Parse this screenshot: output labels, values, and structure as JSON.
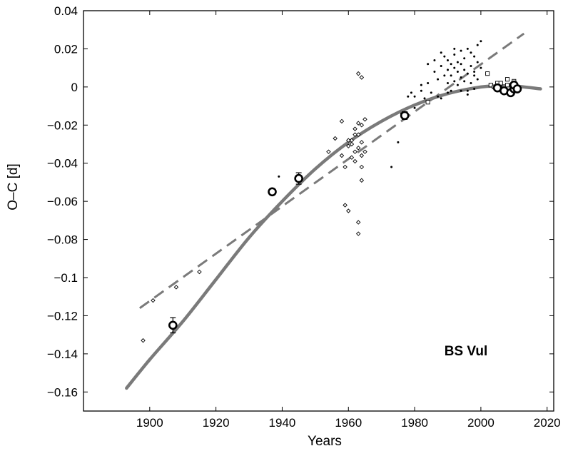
{
  "chart_data": {
    "type": "scatter",
    "title": "",
    "xlabel": "Years",
    "ylabel": "O–C  [d]",
    "annotation": "BS Vul",
    "xlim": [
      1880,
      2022
    ],
    "ylim": [
      -0.17,
      0.04
    ],
    "x_ticks": [
      1900,
      1920,
      1940,
      1960,
      1980,
      2000,
      2020
    ],
    "y_ticks": [
      0.04,
      0.02,
      0,
      -0.02,
      -0.04,
      -0.06,
      -0.08,
      -0.1,
      -0.12,
      -0.14,
      -0.16
    ],
    "x_tick_labels": [
      "1900",
      "1920",
      "1940",
      "1960",
      "1980",
      "2000",
      "2020"
    ],
    "y_tick_labels": [
      "0.04",
      "0.02",
      "0",
      "−0.02",
      "−0.04",
      "−0.06",
      "−0.08",
      "−0.1",
      "−0.12",
      "−0.14",
      "−0.16"
    ],
    "grid": false,
    "colors": {
      "curve": "#7a7a7a",
      "axis": "#000000",
      "points": "#000000"
    },
    "series": [
      {
        "kind": "fit-parabola",
        "x": [
          1893,
          1900,
          1910,
          1920,
          1930,
          1940,
          1950,
          1960,
          1970,
          1980,
          1990,
          2000,
          2005,
          2010,
          2018
        ],
        "y": [
          -0.158,
          -0.143,
          -0.123,
          -0.101,
          -0.079,
          -0.06,
          -0.043,
          -0.029,
          -0.018,
          -0.0095,
          -0.0035,
          0,
          0.0005,
          0.0005,
          -0.001
        ]
      },
      {
        "kind": "fit-linear",
        "x": [
          1897,
          2013
        ],
        "y": [
          -0.116,
          0.028
        ]
      },
      {
        "kind": "diamond",
        "x": [
          1898,
          1901,
          1908,
          1915,
          1937,
          1954,
          1956,
          1958,
          1958,
          1959,
          1960,
          1960,
          1961,
          1961,
          1962,
          1962,
          1962,
          1963,
          1963,
          1963,
          1963,
          1964,
          1964,
          1964,
          1964,
          1965,
          1963,
          1959,
          1960,
          1964,
          1963,
          1964,
          1961,
          1962,
          1965
        ],
        "y": [
          -0.133,
          -0.112,
          -0.105,
          -0.097,
          -0.055,
          -0.034,
          -0.027,
          -0.018,
          -0.036,
          -0.042,
          -0.031,
          -0.065,
          -0.028,
          -0.037,
          -0.022,
          -0.034,
          -0.039,
          -0.019,
          -0.025,
          -0.032,
          0.007,
          -0.02,
          -0.029,
          -0.042,
          -0.049,
          -0.017,
          -0.071,
          -0.062,
          -0.028,
          0.005,
          -0.077,
          -0.036,
          -0.03,
          -0.025,
          -0.034
        ]
      },
      {
        "kind": "dot",
        "x": [
          1939,
          1973,
          1975,
          1978,
          1979,
          1980,
          1982,
          1983,
          1984,
          1985,
          1986,
          1987,
          1987,
          1988,
          1988,
          1989,
          1989,
          1990,
          1990,
          1990,
          1991,
          1991,
          1991,
          1992,
          1992,
          1992,
          1993,
          1993,
          1993,
          1994,
          1994,
          1994,
          1995,
          1995,
          1995,
          1996,
          1996,
          1996,
          1997,
          1997,
          1997,
          1998,
          1998,
          1998,
          1999,
          1999,
          1999,
          2000,
          2000,
          1984,
          1986,
          1988,
          1990,
          1992,
          1994,
          1996,
          1998,
          1980,
          1982,
          1976
        ],
        "y": [
          -0.047,
          -0.042,
          -0.029,
          -0.005,
          -0.003,
          -0.011,
          0.001,
          -0.006,
          0.012,
          -0.003,
          0.008,
          -0.005,
          0.004,
          0.011,
          -0.006,
          0.006,
          0.016,
          0.002,
          0.009,
          0.014,
          -0.002,
          0.006,
          0.012,
          0.003,
          0.01,
          0.017,
          0.001,
          0.008,
          0.013,
          -0.002,
          0.005,
          0.019,
          0.003,
          0.009,
          0.015,
          -0.004,
          0.007,
          0.02,
          0.002,
          0.011,
          0.018,
          -0.001,
          0.006,
          0.016,
          0.004,
          0.013,
          0.022,
          0.01,
          0.024,
          0.002,
          0.014,
          0.018,
          -0.003,
          0.02,
          0.012,
          -0.002,
          0.008,
          -0.005,
          -0.002,
          -0.014
        ]
      },
      {
        "kind": "square",
        "x": [
          1984,
          2002,
          2003,
          2004,
          2005,
          2006,
          2007,
          2008,
          2009,
          2010,
          2011,
          2008,
          2010,
          2006
        ],
        "y": [
          -0.008,
          0.007,
          0.001,
          0.0,
          0.002,
          -0.001,
          0.0,
          0.004,
          -0.002,
          0.003,
          0.0,
          0.001,
          -0.001,
          0.002
        ]
      },
      {
        "kind": "circle-errorbar",
        "x": [
          1907,
          1937,
          1945,
          1977,
          2005,
          2007,
          2009,
          2010,
          2010,
          2011
        ],
        "y": [
          -0.125,
          -0.055,
          -0.048,
          -0.015,
          -0.0005,
          -0.002,
          -0.003,
          -0.001,
          0.001,
          -0.001
        ],
        "err": [
          0.004,
          0.001,
          0.003,
          0.002,
          0.0,
          0.0,
          0.0,
          0.0,
          0.0,
          0.0
        ]
      }
    ]
  }
}
